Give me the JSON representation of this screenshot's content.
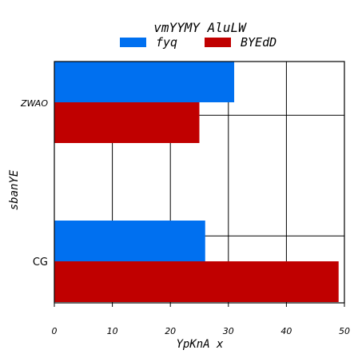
{
  "chart_data": {
    "type": "bar",
    "orientation": "horizontal",
    "title": "vmYYMY AluLW",
    "xlabel": "YpKnA x",
    "ylabel": "sbanYE",
    "categories": [
      "ZWAO",
      "CG"
    ],
    "series": [
      {
        "name": "fyq",
        "color": "#0070f0",
        "values": [
          31,
          26
        ]
      },
      {
        "name": "BYEdD",
        "color": "#c00000",
        "values": [
          25,
          49
        ]
      }
    ],
    "xlim": [
      0,
      50
    ],
    "xticks": [
      0,
      10,
      20,
      30,
      40,
      50
    ],
    "grid": true,
    "legend_position": "top-center"
  }
}
